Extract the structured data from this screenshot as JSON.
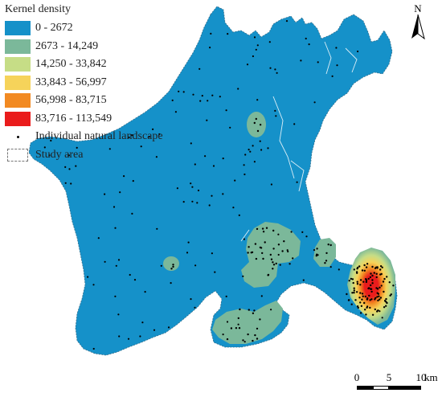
{
  "legend": {
    "title": "Kernel density",
    "classes": [
      {
        "label": "0 - 2672",
        "color": "#1591c9"
      },
      {
        "label": "2673 - 14,249",
        "color": "#7bb89a"
      },
      {
        "label": "14,250 - 33,842",
        "color": "#c6dd86"
      },
      {
        "label": "33,843 - 56,997",
        "color": "#f6d35a"
      },
      {
        "label": "56,998 - 83,715",
        "color": "#f28a22"
      },
      {
        "label": "83,716 - 113,549",
        "color": "#ea1c1c"
      }
    ],
    "points_label": "Individual natural landscape",
    "study_area_label": "Study area"
  },
  "north_arrow": {
    "label": "N"
  },
  "scale_bar": {
    "ticks": [
      "0",
      "5",
      "10"
    ],
    "unit": "km"
  }
}
